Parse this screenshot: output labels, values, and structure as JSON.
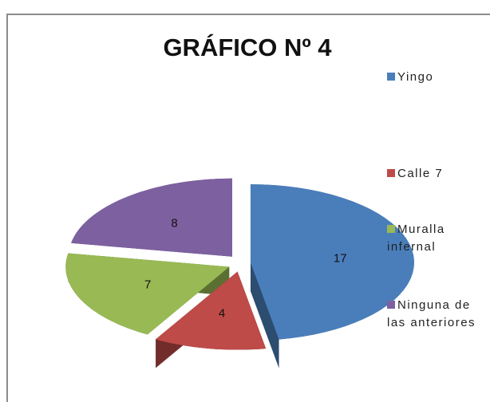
{
  "chart_data": {
    "type": "pie",
    "title": "GRÁFICO Nº 4",
    "categories": [
      "Yingo",
      "Calle 7",
      "Muralla infernal",
      "Ninguna de las anteriores"
    ],
    "values": [
      17,
      4,
      7,
      8
    ],
    "colors": [
      "#4a7ebb",
      "#be4b48",
      "#98b954",
      "#7d60a0"
    ],
    "legend": "right",
    "exploded": true,
    "3d": true
  }
}
